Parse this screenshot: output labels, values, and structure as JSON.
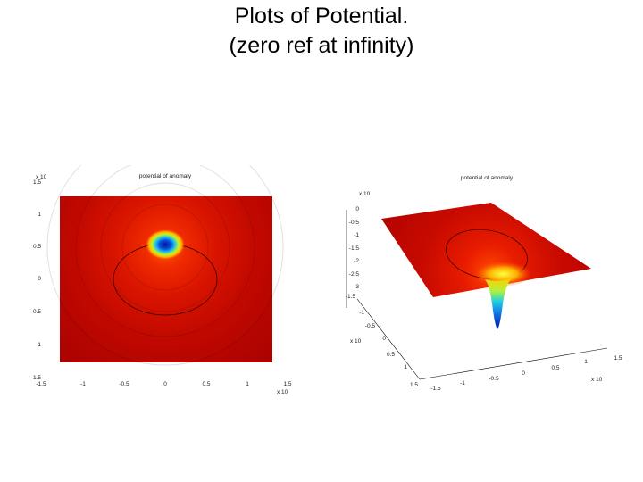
{
  "slide": {
    "title_line1": "Plots of Potential.",
    "title_line2": "(zero ref at infinity)"
  },
  "left_plot": {
    "title": "potential of anomaly",
    "y_exponent": "x 10",
    "x_exponent": "x 10",
    "y_ticks": [
      "1.5",
      "1",
      "0.5",
      "0",
      "-0.5",
      "-1",
      "-1.5"
    ],
    "x_ticks": [
      "-1.5",
      "-1",
      "-0.5",
      "0",
      "0.5",
      "1",
      "1.5"
    ],
    "colors": {
      "background": "#a80000",
      "mid": "#e01a00",
      "high": "#ffe000",
      "low": "#0015a0"
    }
  },
  "right_plot": {
    "title": "potential of anomaly",
    "z_exponent": "x 10",
    "z_ticks": [
      "0",
      "-0.5",
      "-1",
      "-1.5",
      "-2",
      "-2.5",
      "-3"
    ],
    "y_ticks": [
      "-1.5",
      "-1",
      "-0.5",
      "0",
      "0.5",
      "1",
      "1.5"
    ],
    "y_exponent": "x 10",
    "x_ticks": [
      "-1.5",
      "-1",
      "-0.5",
      "0",
      "0.5",
      "1",
      "1.5"
    ],
    "x_exponent": "x 10"
  }
}
